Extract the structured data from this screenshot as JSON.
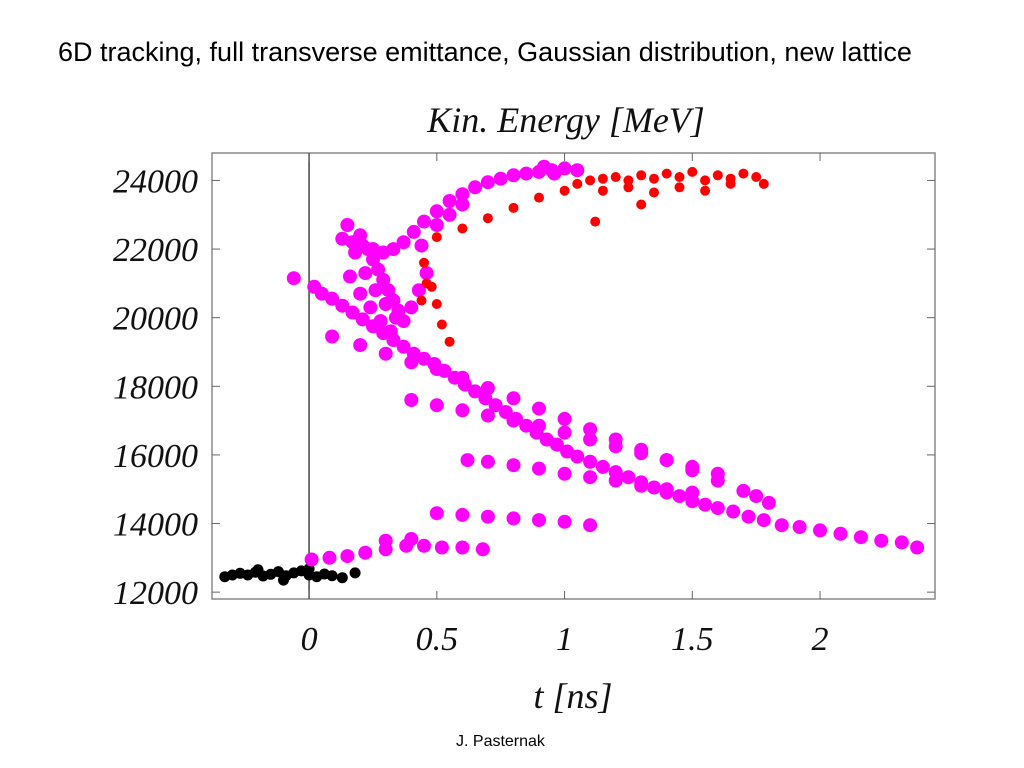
{
  "slide": {
    "title": "6D tracking, full transverse emittance, Gaussian distribution, new lattice",
    "credit": "J. Pasternak"
  },
  "chart_data": {
    "type": "scatter",
    "title": "Kin. Energy [MeV]",
    "xlabel": "t [ns]",
    "ylabel": "",
    "xlim": [
      -0.38,
      2.45
    ],
    "ylim": [
      11800,
      24800
    ],
    "x_ticks": [
      0,
      0.5,
      1,
      1.5,
      2
    ],
    "x_tick_labels": [
      "0",
      "0.5",
      "1",
      "1.5",
      "2"
    ],
    "y_ticks": [
      12000,
      14000,
      16000,
      18000,
      20000,
      22000,
      24000
    ],
    "y_tick_labels": [
      "12000",
      "14000",
      "16000",
      "18000",
      "20000",
      "22000",
      "24000"
    ],
    "vertical_line_x": 0,
    "grid": false,
    "series": [
      {
        "color": "#000000",
        "points": [
          [
            -0.3,
            12500
          ],
          [
            -0.27,
            12550
          ],
          [
            -0.24,
            12500
          ],
          [
            -0.21,
            12580
          ],
          [
            -0.18,
            12470
          ],
          [
            -0.15,
            12520
          ],
          [
            -0.12,
            12600
          ],
          [
            -0.09,
            12480
          ],
          [
            -0.06,
            12560
          ],
          [
            -0.03,
            12620
          ],
          [
            0.0,
            12500
          ],
          [
            0.03,
            12450
          ],
          [
            0.06,
            12530
          ],
          [
            0.09,
            12480
          ],
          [
            0.13,
            12420
          ],
          [
            0.18,
            12560
          ],
          [
            -0.2,
            12650
          ],
          [
            -0.1,
            12350
          ],
          [
            0.0,
            12680
          ],
          [
            -0.33,
            12450
          ]
        ]
      },
      {
        "color": "#ff00ff",
        "points": [
          [
            -0.06,
            21150
          ],
          [
            0.02,
            20900
          ],
          [
            0.05,
            20700
          ],
          [
            0.09,
            20550
          ],
          [
            0.13,
            20350
          ],
          [
            0.17,
            20150
          ],
          [
            0.21,
            19950
          ],
          [
            0.25,
            19750
          ],
          [
            0.29,
            19550
          ],
          [
            0.33,
            19350
          ],
          [
            0.37,
            19150
          ],
          [
            0.41,
            18950
          ],
          [
            0.45,
            18800
          ],
          [
            0.49,
            18650
          ],
          [
            0.53,
            18450
          ],
          [
            0.57,
            18250
          ],
          [
            0.61,
            18050
          ],
          [
            0.65,
            17850
          ],
          [
            0.69,
            17650
          ],
          [
            0.73,
            17450
          ],
          [
            0.77,
            17250
          ],
          [
            0.81,
            17050
          ],
          [
            0.85,
            16850
          ],
          [
            0.89,
            16650
          ],
          [
            0.93,
            16450
          ],
          [
            0.97,
            16300
          ],
          [
            1.01,
            16100
          ],
          [
            1.05,
            15950
          ],
          [
            1.1,
            15800
          ],
          [
            1.15,
            15650
          ],
          [
            1.2,
            15500
          ],
          [
            1.25,
            15350
          ],
          [
            1.3,
            15200
          ],
          [
            1.35,
            15050
          ],
          [
            1.4,
            14900
          ],
          [
            1.45,
            14800
          ],
          [
            1.5,
            14650
          ],
          [
            1.55,
            14550
          ],
          [
            1.6,
            14450
          ],
          [
            1.66,
            14350
          ],
          [
            1.72,
            14200
          ],
          [
            1.78,
            14100
          ],
          [
            1.85,
            13950
          ],
          [
            1.92,
            13900
          ],
          [
            2.0,
            13800
          ],
          [
            2.08,
            13700
          ],
          [
            2.16,
            13600
          ],
          [
            2.24,
            13500
          ],
          [
            2.32,
            13450
          ],
          [
            2.38,
            13300
          ],
          [
            0.09,
            19450
          ],
          [
            0.2,
            19200
          ],
          [
            0.3,
            18950
          ],
          [
            0.4,
            18700
          ],
          [
            0.5,
            18500
          ],
          [
            0.6,
            18250
          ],
          [
            0.7,
            17950
          ],
          [
            0.8,
            17650
          ],
          [
            0.9,
            17350
          ],
          [
            1.0,
            17050
          ],
          [
            1.1,
            16750
          ],
          [
            1.2,
            16450
          ],
          [
            1.3,
            16150
          ],
          [
            1.4,
            15850
          ],
          [
            1.5,
            15550
          ],
          [
            1.6,
            15250
          ],
          [
            1.7,
            14950
          ],
          [
            1.75,
            14800
          ],
          [
            1.8,
            14600
          ],
          [
            0.4,
            17600
          ],
          [
            0.5,
            17450
          ],
          [
            0.6,
            17300
          ],
          [
            0.7,
            17150
          ],
          [
            0.8,
            17000
          ],
          [
            0.9,
            16850
          ],
          [
            1.0,
            16650
          ],
          [
            1.1,
            16450
          ],
          [
            1.2,
            16250
          ],
          [
            1.3,
            16050
          ],
          [
            1.4,
            15850
          ],
          [
            1.5,
            15650
          ],
          [
            1.6,
            15450
          ],
          [
            0.62,
            15850
          ],
          [
            0.7,
            15800
          ],
          [
            0.8,
            15700
          ],
          [
            0.9,
            15600
          ],
          [
            1.0,
            15450
          ],
          [
            1.1,
            15350
          ],
          [
            1.2,
            15250
          ],
          [
            1.3,
            15100
          ],
          [
            1.4,
            15000
          ],
          [
            1.5,
            14900
          ],
          [
            0.5,
            14300
          ],
          [
            0.6,
            14250
          ],
          [
            0.7,
            14200
          ],
          [
            0.8,
            14150
          ],
          [
            0.9,
            14100
          ],
          [
            1.0,
            14050
          ],
          [
            1.1,
            13950
          ],
          [
            0.01,
            12950
          ],
          [
            0.08,
            13000
          ],
          [
            0.15,
            13050
          ],
          [
            0.22,
            13150
          ],
          [
            0.3,
            13250
          ],
          [
            0.38,
            13350
          ],
          [
            0.45,
            13350
          ],
          [
            0.52,
            13300
          ],
          [
            0.6,
            13300
          ],
          [
            0.68,
            13250
          ],
          [
            0.3,
            13500
          ],
          [
            0.4,
            13550
          ],
          [
            0.15,
            22700
          ],
          [
            0.2,
            22400
          ],
          [
            0.23,
            22000
          ],
          [
            0.25,
            21700
          ],
          [
            0.27,
            21400
          ],
          [
            0.29,
            21100
          ],
          [
            0.31,
            20800
          ],
          [
            0.33,
            20500
          ],
          [
            0.35,
            20200
          ],
          [
            0.37,
            19900
          ],
          [
            0.18,
            21900
          ],
          [
            0.22,
            21300
          ],
          [
            0.26,
            20800
          ],
          [
            0.3,
            20400
          ],
          [
            0.34,
            20000
          ],
          [
            0.16,
            21200
          ],
          [
            0.2,
            20700
          ],
          [
            0.24,
            20300
          ],
          [
            0.28,
            19900
          ],
          [
            0.32,
            19600
          ],
          [
            0.13,
            22300
          ],
          [
            0.17,
            22200
          ],
          [
            0.21,
            22100
          ],
          [
            0.25,
            22000
          ],
          [
            0.29,
            21900
          ],
          [
            0.33,
            22000
          ],
          [
            0.37,
            22200
          ],
          [
            0.41,
            22500
          ],
          [
            0.45,
            22800
          ],
          [
            0.5,
            23100
          ],
          [
            0.55,
            23400
          ],
          [
            0.6,
            23600
          ],
          [
            0.65,
            23800
          ],
          [
            0.7,
            23950
          ],
          [
            0.75,
            24050
          ],
          [
            0.8,
            24150
          ],
          [
            0.85,
            24200
          ],
          [
            0.9,
            24250
          ],
          [
            0.95,
            24300
          ],
          [
            1.0,
            24350
          ],
          [
            1.05,
            24300
          ],
          [
            0.92,
            24400
          ],
          [
            0.96,
            24200
          ],
          [
            0.5,
            22700
          ],
          [
            0.55,
            23000
          ],
          [
            0.6,
            23300
          ],
          [
            0.44,
            22100
          ],
          [
            0.46,
            21300
          ],
          [
            0.43,
            20800
          ],
          [
            0.4,
            20300
          ]
        ]
      },
      {
        "color": "#ff0000",
        "points": [
          [
            0.5,
            22350
          ],
          [
            0.6,
            22600
          ],
          [
            0.7,
            22900
          ],
          [
            0.8,
            23200
          ],
          [
            0.9,
            23500
          ],
          [
            1.0,
            23700
          ],
          [
            1.05,
            23900
          ],
          [
            1.1,
            24000
          ],
          [
            1.15,
            24050
          ],
          [
            1.2,
            24100
          ],
          [
            1.25,
            24000
          ],
          [
            1.3,
            24150
          ],
          [
            1.35,
            24050
          ],
          [
            1.4,
            24200
          ],
          [
            1.45,
            24100
          ],
          [
            1.5,
            24250
          ],
          [
            1.55,
            24000
          ],
          [
            1.6,
            24150
          ],
          [
            1.65,
            24050
          ],
          [
            1.7,
            24200
          ],
          [
            1.75,
            24100
          ],
          [
            1.78,
            23900
          ],
          [
            1.15,
            23700
          ],
          [
            1.25,
            23800
          ],
          [
            1.35,
            23650
          ],
          [
            1.45,
            23800
          ],
          [
            1.55,
            23700
          ],
          [
            1.65,
            23900
          ],
          [
            1.12,
            22800
          ],
          [
            1.3,
            23300
          ],
          [
            0.45,
            21600
          ],
          [
            0.48,
            20900
          ],
          [
            0.5,
            20400
          ],
          [
            0.52,
            19800
          ],
          [
            0.55,
            19300
          ],
          [
            0.46,
            21000
          ],
          [
            0.44,
            20500
          ]
        ]
      }
    ]
  }
}
